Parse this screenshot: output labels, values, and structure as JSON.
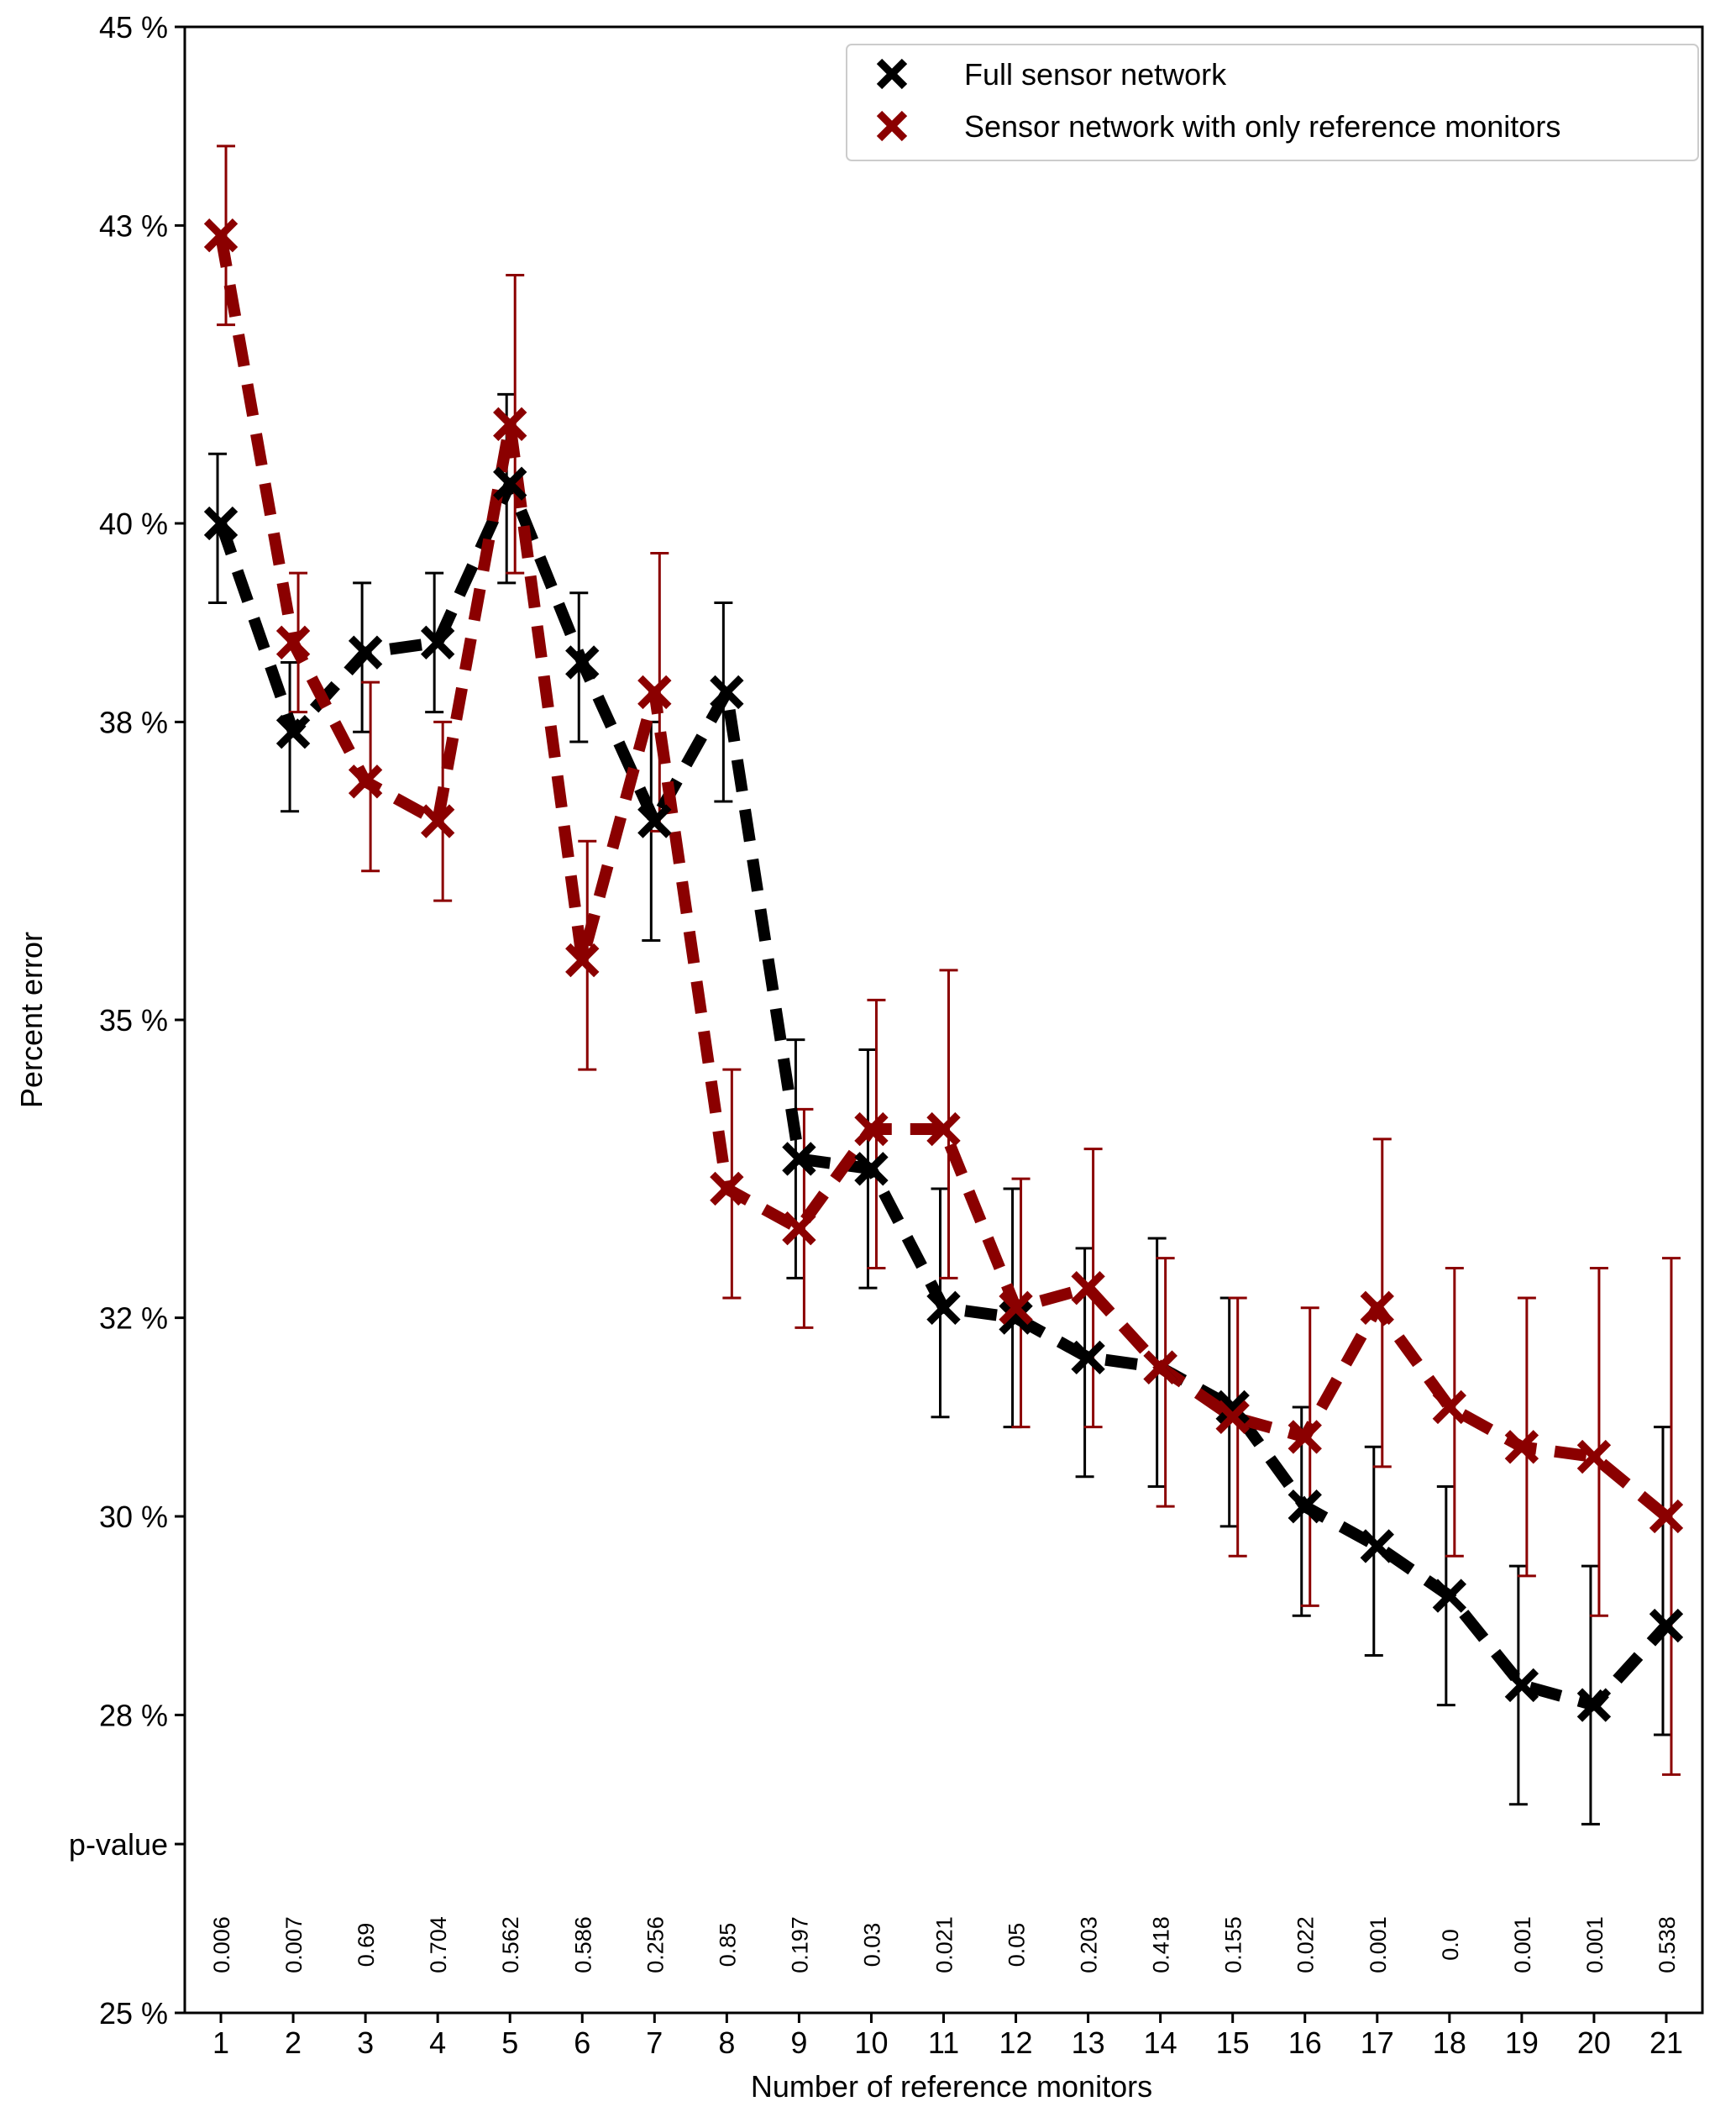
{
  "chart_data": {
    "type": "line",
    "xlabel": "Number of reference monitors",
    "ylabel": "Percent error",
    "x": [
      1,
      2,
      3,
      4,
      5,
      6,
      7,
      8,
      9,
      10,
      11,
      12,
      13,
      14,
      15,
      16,
      17,
      18,
      19,
      20,
      21
    ],
    "xlim": [
      0.5,
      21.5
    ],
    "ylim": [
      25,
      45
    ],
    "y_ticks": [
      {
        "value": 45,
        "label": "45 %"
      },
      {
        "value": 43,
        "label": "43 %"
      },
      {
        "value": 40,
        "label": "40 %"
      },
      {
        "value": 38,
        "label": "38 %"
      },
      {
        "value": 35,
        "label": "35 %"
      },
      {
        "value": 32,
        "label": "32 %"
      },
      {
        "value": 30,
        "label": "30 %"
      },
      {
        "value": 28,
        "label": "28 %"
      },
      {
        "value": 26.7,
        "label": "p-value"
      },
      {
        "value": 25,
        "label": "25 %"
      }
    ],
    "series": [
      {
        "name": "Full sensor network",
        "color": "#000000",
        "values": [
          40.0,
          37.9,
          38.7,
          38.8,
          40.4,
          38.6,
          37.0,
          38.3,
          33.6,
          33.5,
          32.1,
          32.0,
          31.6,
          31.5,
          31.1,
          30.1,
          29.7,
          29.2,
          28.3,
          28.1,
          28.9
        ],
        "err_low": [
          39.2,
          37.1,
          37.9,
          38.1,
          39.4,
          37.8,
          35.8,
          37.2,
          32.4,
          32.3,
          31.0,
          30.9,
          30.4,
          30.3,
          29.9,
          29.0,
          28.6,
          28.1,
          27.1,
          26.9,
          27.8
        ],
        "err_high": [
          40.7,
          38.6,
          39.4,
          39.5,
          41.3,
          39.3,
          38.0,
          39.2,
          34.8,
          34.7,
          33.3,
          33.3,
          32.7,
          32.8,
          32.2,
          31.1,
          30.7,
          30.3,
          29.5,
          29.5,
          30.9
        ]
      },
      {
        "name": "Sensor network with only reference monitors",
        "color": "#8b0000",
        "values": [
          42.9,
          38.8,
          37.4,
          37.0,
          41.0,
          35.6,
          38.3,
          33.3,
          32.9,
          33.9,
          33.9,
          32.1,
          32.3,
          31.5,
          31.0,
          30.8,
          32.1,
          31.1,
          30.7,
          30.6,
          30.0
        ],
        "err_low": [
          42.0,
          38.1,
          36.5,
          36.2,
          39.5,
          34.5,
          36.9,
          32.2,
          31.9,
          32.5,
          32.4,
          30.9,
          30.9,
          30.1,
          29.6,
          29.1,
          30.5,
          29.6,
          29.4,
          29.0,
          27.4
        ],
        "err_high": [
          43.8,
          39.5,
          38.4,
          38.0,
          42.5,
          36.8,
          39.7,
          34.5,
          34.1,
          35.2,
          35.5,
          33.4,
          33.7,
          32.6,
          32.2,
          32.1,
          33.8,
          32.5,
          32.2,
          32.5,
          32.6
        ]
      }
    ],
    "p_values": [
      "0.006",
      "0.007",
      "0.69",
      "0.704",
      "0.562",
      "0.586",
      "0.256",
      "0.85",
      "0.197",
      "0.03",
      "0.021",
      "0.05",
      "0.203",
      "0.418",
      "0.155",
      "0.022",
      "0.001",
      "0.0",
      "0.001",
      "0.001",
      "0.538"
    ],
    "legend_position": "top-right",
    "grid": false
  }
}
